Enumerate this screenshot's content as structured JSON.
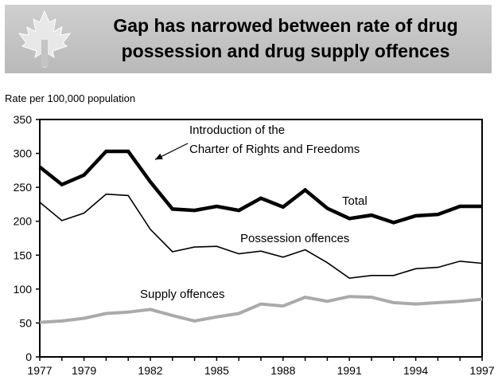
{
  "header": {
    "title_line1": "Gap has narrowed between rate of drug",
    "title_line2": "possession and drug supply offences",
    "logo_icon": "maple-leaf-icon"
  },
  "chart_data": {
    "type": "line",
    "title": "Gap has narrowed between rate of drug possession and drug supply offences",
    "ylabel": "Rate per 100,000 population",
    "xlabel": "",
    "ylim": [
      0,
      350
    ],
    "xlim": [
      1977,
      1997
    ],
    "yticks": [
      0,
      50,
      100,
      150,
      200,
      250,
      300,
      350
    ],
    "xticks": [
      1977,
      1979,
      1982,
      1985,
      1988,
      1991,
      1994,
      1997
    ],
    "grid": false,
    "x": [
      1977,
      1978,
      1979,
      1980,
      1981,
      1982,
      1983,
      1984,
      1985,
      1986,
      1987,
      1988,
      1989,
      1990,
      1991,
      1992,
      1993,
      1994,
      1995,
      1996,
      1997
    ],
    "series": [
      {
        "name": "Total",
        "color": "#000000",
        "width": 4.5,
        "values": [
          280,
          254,
          268,
          303,
          303,
          258,
          218,
          216,
          222,
          216,
          234,
          221,
          246,
          219,
          204,
          209,
          198,
          208,
          210,
          222,
          222
        ]
      },
      {
        "name": "Possession offences",
        "color": "#000000",
        "width": 1.6,
        "values": [
          228,
          201,
          212,
          240,
          238,
          188,
          155,
          162,
          163,
          152,
          156,
          147,
          158,
          139,
          116,
          120,
          120,
          130,
          132,
          141,
          138
        ]
      },
      {
        "name": "Supply offences",
        "color": "#aaaaaa",
        "width": 4,
        "values": [
          51,
          53,
          57,
          64,
          66,
          70,
          61,
          53,
          59,
          64,
          78,
          75,
          88,
          82,
          89,
          88,
          80,
          78,
          80,
          82,
          85
        ]
      }
    ],
    "annotations": [
      {
        "text_line1": "Introduction of the",
        "text_line2": "Charter of Rights and Freedoms",
        "points_to_x": 1982,
        "points_to_series": "Total"
      }
    ]
  }
}
